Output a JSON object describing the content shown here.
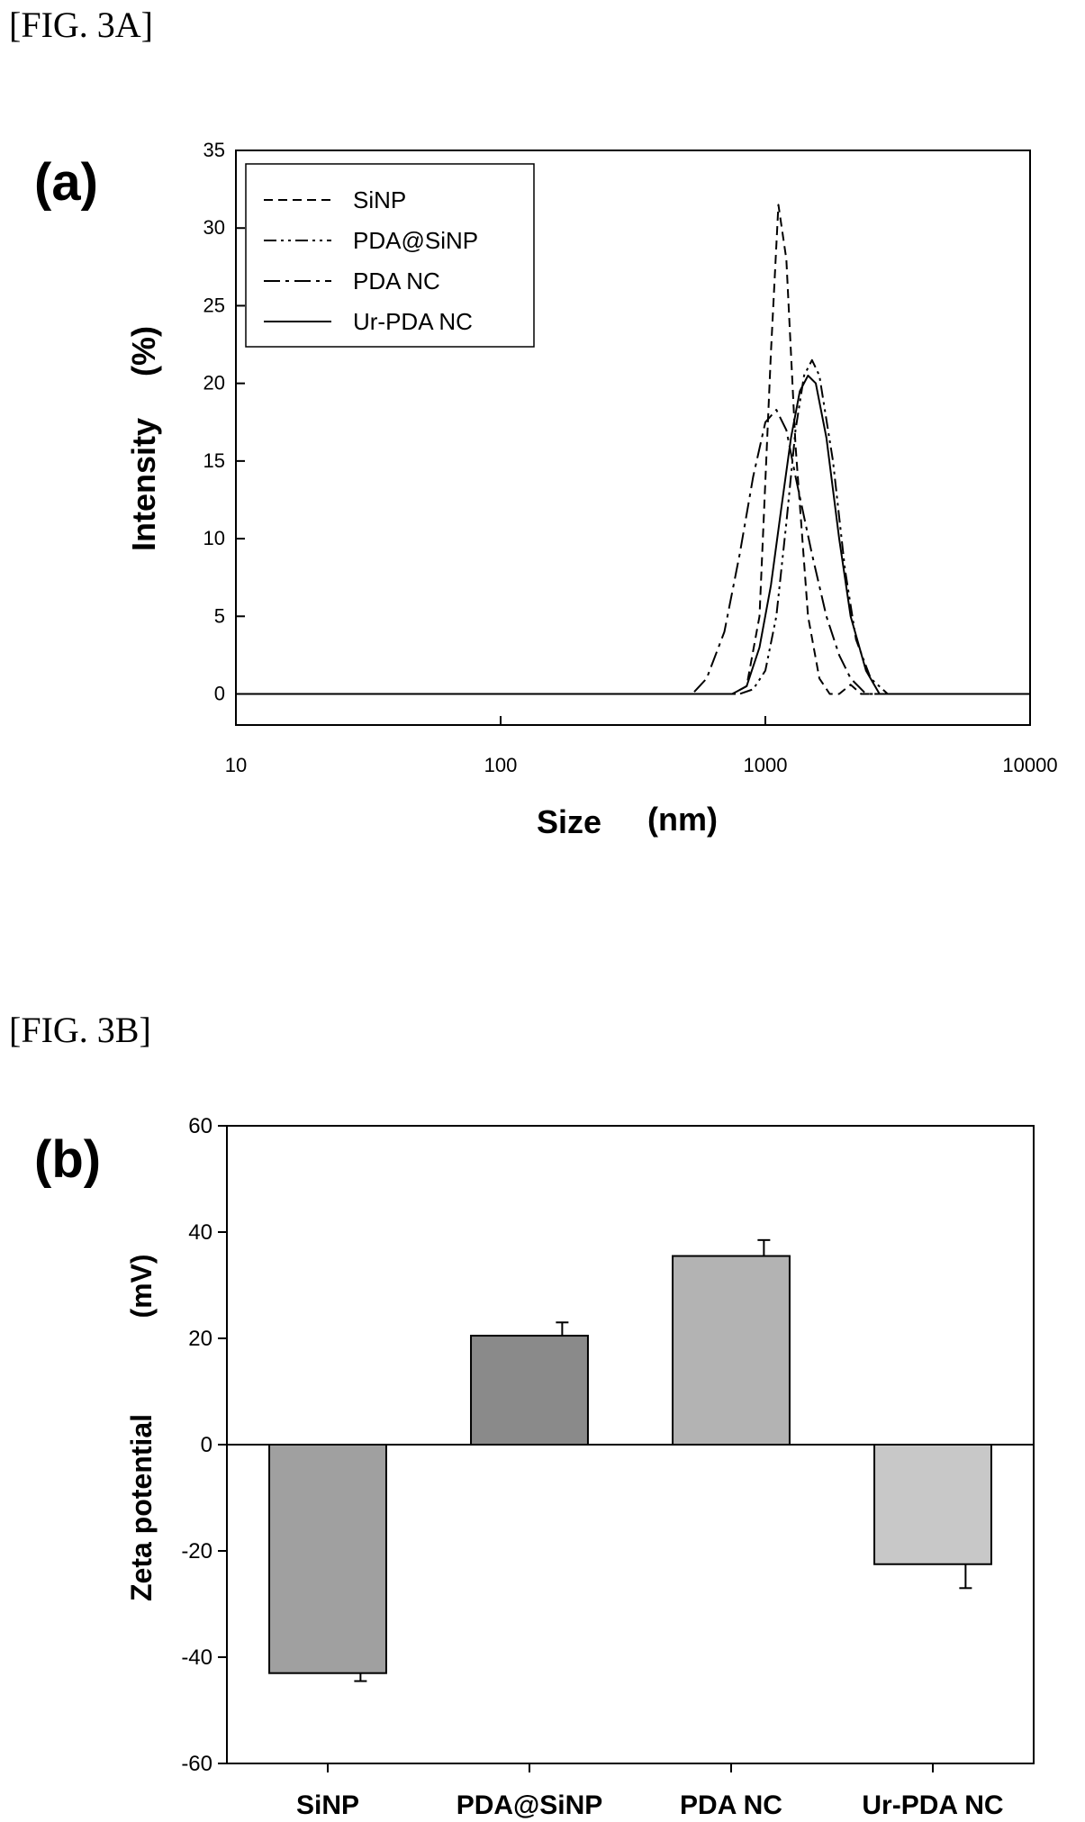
{
  "figure_labels": {
    "fig_3a": "[FIG. 3A]",
    "fig_3b": "[FIG. 3B]"
  },
  "chart_data": [
    {
      "type": "line",
      "panel_label": "(a)",
      "xlabel": "Size",
      "xlabel_unit": "(nm)",
      "ylabel": "Intensity",
      "ylabel_unit": "(%)",
      "x_scale": "log",
      "xlim": [
        10,
        10000
      ],
      "ylim": [
        -2,
        35
      ],
      "x_ticks": [
        10,
        100,
        1000,
        10000
      ],
      "x_tick_labels": [
        "10",
        "100",
        "1000",
        "10000"
      ],
      "y_ticks": [
        0,
        5,
        10,
        15,
        20,
        25,
        30,
        35
      ],
      "y_tick_labels": [
        "0",
        "5",
        "10",
        "15",
        "20",
        "25",
        "30",
        "35"
      ],
      "grid": false,
      "legend_position": "top-left",
      "series": [
        {
          "name": "SiNP",
          "dash": "dashed",
          "x": [
            10,
            600,
            750,
            850,
            950,
            1050,
            1120,
            1200,
            1300,
            1450,
            1600,
            1750,
            1900,
            2100,
            2300,
            2600,
            10000
          ],
          "y": [
            0,
            0,
            0,
            0.5,
            5,
            22,
            31.5,
            28,
            16,
            5,
            1,
            0,
            0,
            0.6,
            0,
            0,
            0
          ]
        },
        {
          "name": "PDA@SiNP",
          "dash": "dash-dot-dot",
          "x": [
            10,
            700,
            800,
            900,
            1000,
            1100,
            1200,
            1300,
            1400,
            1500,
            1600,
            1800,
            2000,
            2200,
            2500,
            2900,
            10000
          ],
          "y": [
            0,
            0,
            0,
            0.3,
            1.5,
            5,
            11,
            17,
            20.5,
            21.5,
            20.5,
            15,
            8,
            3.5,
            1,
            0,
            0
          ]
        },
        {
          "name": "PDA NC",
          "dash": "dash-dot",
          "x": [
            10,
            530,
            600,
            700,
            800,
            900,
            1000,
            1100,
            1200,
            1300,
            1500,
            1700,
            1900,
            2100,
            2400,
            10000
          ],
          "y": [
            0,
            0,
            1,
            4,
            9,
            14,
            17.5,
            18.3,
            17,
            14,
            9,
            5,
            2.5,
            1,
            0,
            0
          ]
        },
        {
          "name": "Ur-PDA NC",
          "dash": "solid",
          "x": [
            10,
            650,
            750,
            850,
            950,
            1050,
            1150,
            1250,
            1350,
            1450,
            1550,
            1700,
            1900,
            2100,
            2400,
            2700,
            10000
          ],
          "y": [
            0,
            0,
            0,
            0.5,
            3,
            7,
            12,
            16.5,
            19.5,
            20.5,
            20,
            16.5,
            10,
            5,
            1.5,
            0,
            0
          ]
        }
      ]
    },
    {
      "type": "bar",
      "panel_label": "(b)",
      "xlabel": "",
      "ylabel": "Zeta potential",
      "ylabel_unit": "(mV)",
      "ylim": [
        -60,
        60
      ],
      "y_ticks": [
        -60,
        -40,
        -20,
        0,
        20,
        40,
        60
      ],
      "y_tick_labels": [
        "-60",
        "-40",
        "-20",
        "0",
        "20",
        "40",
        "60"
      ],
      "grid": false,
      "categories": [
        "SiNP",
        "PDA@SiNP",
        "PDA NC",
        "Ur-PDA NC"
      ],
      "values": [
        -43,
        20.5,
        35.5,
        -22.5
      ],
      "errors": [
        1.5,
        2.5,
        3.0,
        4.5
      ],
      "bar_colors": [
        "#a0a0a0",
        "#8a8a8a",
        "#b3b3b3",
        "#c8c8c8"
      ]
    }
  ]
}
